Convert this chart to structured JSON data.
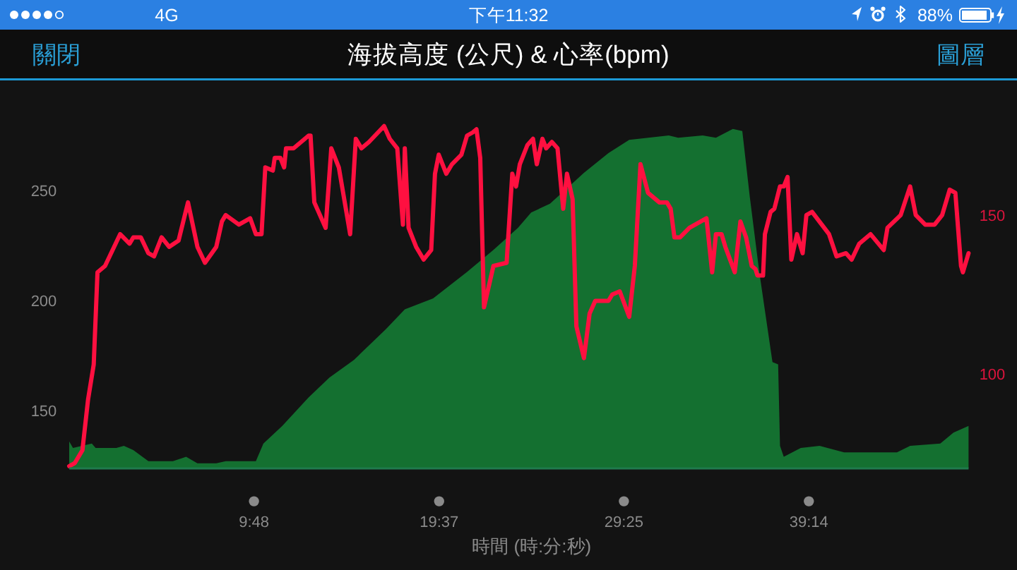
{
  "chart_data": {
    "type": "area",
    "title": "海拔高度 (公尺) & 心率(bpm)",
    "xlabel": "時間 (時:分:秒)",
    "annotations": [
      "4G",
      "下午11:32",
      "88%",
      "關閉",
      "圖層"
    ],
    "xlim": [
      0,
      47.7
    ],
    "xticks": [
      {
        "value": 9.8,
        "label": "9:48"
      },
      {
        "value": 19.62,
        "label": "19:37"
      },
      {
        "value": 29.42,
        "label": "29:25"
      },
      {
        "value": 39.23,
        "label": "39:14"
      }
    ],
    "ylim": [
      123.7,
      300.5
    ],
    "yticks": [
      150,
      200,
      250
    ],
    "y2lim": [
      70.3,
      192.7
    ],
    "y2ticks": [
      100,
      150
    ],
    "series": [
      {
        "type": "area",
        "color": "#147030",
        "x": [
          0,
          0.2,
          1.2,
          1.4,
          2.5,
          2.9,
          3.4,
          4.2,
          5.5,
          6.2,
          6.8,
          7.8,
          8.3,
          9.9,
          10.3,
          11.3,
          12.7,
          13.8,
          15.1,
          16.8,
          17.8,
          19.3,
          21.1,
          22.5,
          23.8,
          24.5,
          25.5,
          27.3,
          28.6,
          29.7,
          31.8,
          32.3,
          33.6,
          34.3,
          35.2,
          35.7,
          36.1,
          36.6,
          37.3,
          37.6,
          37.7,
          37.9,
          38.8,
          39.8,
          41.1,
          43.9,
          44.6,
          46.2,
          46.9,
          47.7
        ],
        "values": [
          136,
          133,
          135,
          133,
          133,
          134,
          132,
          127,
          127,
          129,
          126,
          126,
          127,
          127,
          135,
          143,
          156,
          165,
          173,
          187,
          196,
          201,
          213,
          223,
          233,
          240,
          244,
          258,
          267,
          273,
          275,
          274,
          275,
          274,
          278,
          277,
          247,
          213,
          172,
          171,
          134,
          129,
          133,
          134,
          131,
          131,
          134,
          135,
          140,
          143
        ]
      },
      {
        "type": "line",
        "axis": "y2",
        "color": "#ff1040",
        "x": [
          0,
          0.3,
          0.7,
          1.0,
          1.3,
          1.5,
          1.9,
          2.7,
          3.2,
          3.4,
          3.8,
          4.2,
          4.5,
          4.9,
          5.3,
          5.8,
          6.3,
          6.8,
          7.2,
          7.8,
          8.1,
          8.3,
          9.0,
          9.6,
          9.9,
          10.2,
          10.4,
          10.8,
          10.9,
          11.2,
          11.4,
          11.5,
          11.9,
          12.7,
          12.8,
          13.0,
          13.6,
          13.9,
          14.3,
          14.9,
          15.2,
          15.5,
          15.9,
          16.7,
          17.0,
          17.4,
          17.7,
          17.8,
          18.0,
          18.4,
          18.8,
          19.2,
          19.4,
          19.6,
          20.0,
          20.3,
          20.8,
          21.1,
          21.4,
          21.6,
          21.8,
          22.0,
          22.5,
          23.2,
          23.5,
          23.7,
          23.9,
          24.3,
          24.6,
          24.8,
          25.1,
          25.3,
          25.6,
          25.9,
          26.2,
          26.4,
          26.7,
          26.9,
          27.3,
          27.6,
          27.9,
          28.6,
          28.8,
          29.2,
          29.7,
          30.0,
          30.3,
          30.7,
          31.3,
          31.7,
          31.9,
          32.1,
          32.4,
          32.9,
          33.8,
          34.1,
          34.3,
          34.6,
          34.8,
          35.3,
          35.6,
          35.9,
          36.2,
          36.4,
          36.5,
          36.8,
          36.9,
          37.2,
          37.4,
          37.7,
          37.9,
          38.1,
          38.3,
          38.6,
          38.9,
          39.1,
          39.4,
          40.3,
          40.7,
          41.2,
          41.5,
          41.9,
          42.5,
          43.2,
          43.4,
          44.1,
          44.6,
          44.9,
          45.4,
          45.9,
          46.3,
          46.7,
          47.0,
          47.3,
          47.4,
          47.7
        ],
        "values": [
          71,
          72,
          76,
          92,
          103,
          132,
          134,
          144,
          141,
          143,
          143,
          138,
          137,
          143,
          140,
          142,
          154,
          140,
          135,
          140,
          148,
          150,
          147,
          149,
          144,
          144,
          165,
          164,
          168,
          168,
          165,
          171,
          171,
          175,
          175,
          154,
          146,
          171,
          165,
          144,
          174,
          171,
          173,
          178,
          174,
          171,
          147,
          171,
          146,
          140,
          136,
          139,
          163,
          169,
          163,
          166,
          169,
          175,
          176,
          177,
          168,
          121,
          134,
          135,
          163,
          159,
          166,
          172,
          174,
          166,
          174,
          171,
          173,
          171,
          152,
          163,
          155,
          115,
          105,
          119,
          123,
          123,
          125,
          126,
          118,
          134,
          166,
          157,
          154,
          154,
          152,
          143,
          143,
          146,
          149,
          132,
          144,
          144,
          140,
          132,
          148,
          143,
          134,
          133,
          131,
          131,
          144,
          151,
          152,
          159,
          159,
          162,
          136,
          144,
          138,
          150,
          151,
          144,
          137,
          138,
          136,
          141,
          144,
          139,
          146,
          150,
          159,
          150,
          147,
          147,
          150,
          158,
          157,
          134,
          132,
          138
        ]
      }
    ]
  }
}
